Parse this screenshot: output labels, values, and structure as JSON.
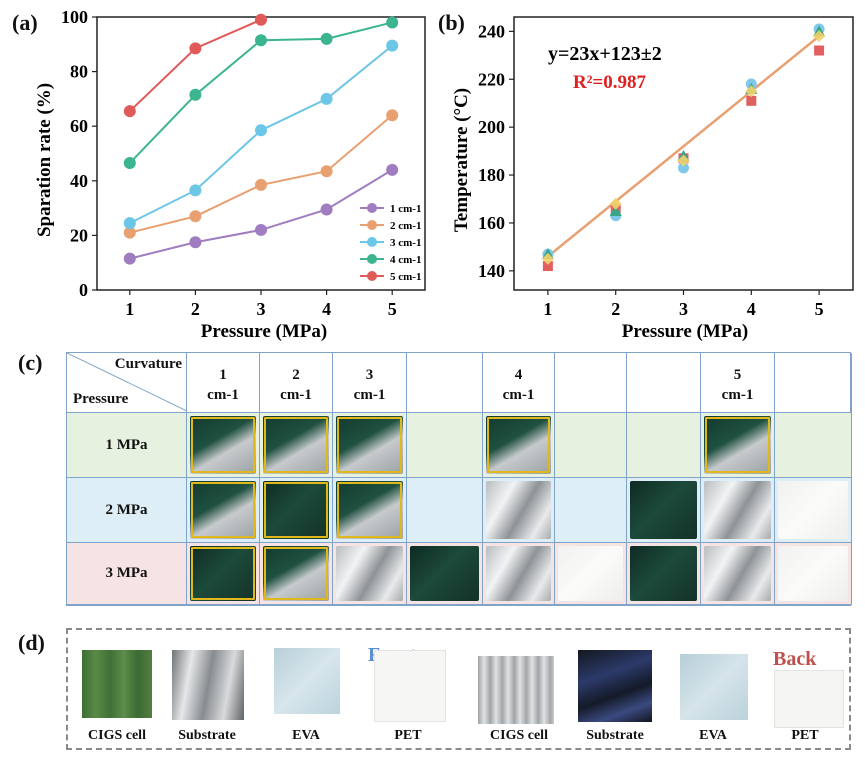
{
  "panels": {
    "a": "(a)",
    "b": "(b)",
    "c": "(c)",
    "d": "(d)"
  },
  "chart_data": [
    {
      "type": "line",
      "title": "",
      "xlabel": "Pressure (MPa)",
      "ylabel": "Sparation rate (%)",
      "xlim": [
        0.5,
        5.5
      ],
      "ylim": [
        0,
        100
      ],
      "x": [
        1,
        2,
        3,
        4,
        5
      ],
      "xticks": [
        "1",
        "2",
        "3",
        "4",
        "5"
      ],
      "yticks": [
        "0",
        "20",
        "40",
        "60",
        "80",
        "100"
      ],
      "legend_position": "lower-right",
      "series": [
        {
          "name": "1 cm-1",
          "color": "#a07cc0",
          "values": [
            11.5,
            17.5,
            22,
            29.5,
            44
          ]
        },
        {
          "name": "2 cm-1",
          "color": "#e9a070",
          "values": [
            21,
            27,
            38.5,
            43.5,
            64
          ]
        },
        {
          "name": "3 cm-1",
          "color": "#6cc6e6",
          "values": [
            24.5,
            36.5,
            58.5,
            70,
            89.5
          ]
        },
        {
          "name": "4 cm-1",
          "color": "#3bb58f",
          "values": [
            46.5,
            71.5,
            91.5,
            92,
            98
          ]
        },
        {
          "name": "5 cm-1",
          "color": "#e05a5a",
          "values": [
            65.5,
            88.5,
            99,
            null,
            null
          ]
        }
      ]
    },
    {
      "type": "scatter",
      "title": "",
      "xlabel": "Pressure (MPa)",
      "ylabel": "Temperature (°C)",
      "xlim": [
        0.5,
        5.5
      ],
      "ylim": [
        132,
        246
      ],
      "xticks": [
        "1",
        "2",
        "3",
        "4",
        "5"
      ],
      "yticks": [
        "140",
        "160",
        "180",
        "200",
        "220",
        "240"
      ],
      "equation": "y=23x+123±2",
      "r2": "R²=0.987",
      "fit": {
        "slope": 23,
        "intercept": 123,
        "color": "#e8a070"
      },
      "series": [
        {
          "marker": "square",
          "color": "#e06060",
          "x": [
            1,
            2,
            3,
            4,
            5
          ],
          "values": [
            142,
            166,
            187,
            211,
            232
          ]
        },
        {
          "marker": "circle",
          "color": "#7fc8ea",
          "x": [
            1,
            2,
            3,
            4,
            5
          ],
          "values": [
            147,
            163,
            183,
            218,
            241
          ]
        },
        {
          "marker": "triangle",
          "color": "#3aa586",
          "x": [
            1,
            2,
            3,
            4,
            5
          ],
          "values": [
            147,
            165,
            188,
            216,
            240
          ]
        },
        {
          "marker": "diamond",
          "color": "#f2d36a",
          "x": [
            1,
            2,
            3,
            4,
            5
          ],
          "values": [
            145,
            168,
            186,
            215,
            238
          ]
        }
      ]
    }
  ],
  "table": {
    "corner_top": "Curvature",
    "corner_bottom": "Pressure",
    "columns": [
      {
        "num": "1",
        "unit": "cm-1"
      },
      {
        "num": "2",
        "unit": "cm-1"
      },
      {
        "num": "3",
        "unit": "cm-1"
      },
      {
        "num": "",
        "unit": ""
      },
      {
        "num": "4",
        "unit": "cm-1"
      },
      {
        "num": "",
        "unit": ""
      },
      {
        "num": "",
        "unit": ""
      },
      {
        "num": "5",
        "unit": "cm-1"
      },
      {
        "num": "",
        "unit": ""
      }
    ],
    "rows": [
      {
        "label": "1 MPa",
        "bg": "#e6f2df",
        "photos": [
          "mixed",
          "mixed",
          "mixed",
          "",
          "mixed",
          "",
          "",
          "mixed",
          ""
        ]
      },
      {
        "label": "2 MPa",
        "bg": "#ddeef6",
        "photos": [
          "mixed",
          "dark",
          "mixed",
          "",
          "silver",
          "",
          "dark",
          "silver",
          "clear"
        ]
      },
      {
        "label": "3 MPa",
        "bg": "#f6e3e3",
        "photos": [
          "dark",
          "mixed",
          "silver",
          "dark",
          "silver",
          "clear",
          "dark",
          "silver",
          "clear"
        ]
      }
    ]
  },
  "samples": {
    "front_label": "Front",
    "back_label": "Back",
    "front": [
      "CIGS cell",
      "Substrate",
      "EVA",
      "PET"
    ],
    "back": [
      "CIGS cell",
      "Substrate",
      "EVA",
      "PET"
    ]
  }
}
